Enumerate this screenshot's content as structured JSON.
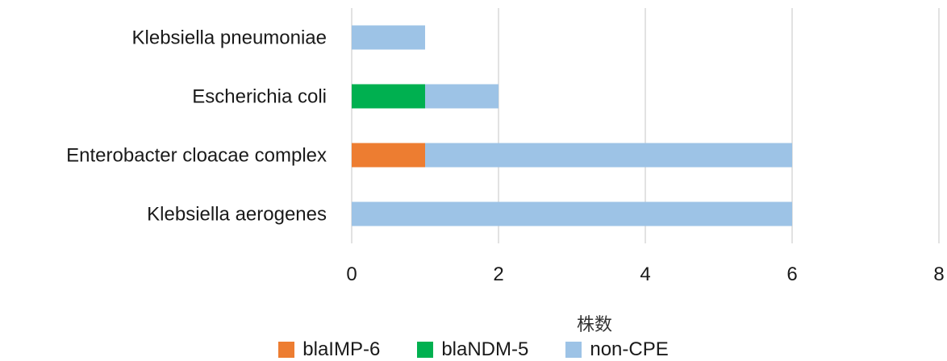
{
  "chart_data": {
    "type": "bar",
    "orientation": "horizontal",
    "stacked": true,
    "categories": [
      "Klebsiella pneumoniae",
      "Escherichia coli",
      "Enterobacter cloacae complex",
      "Klebsiella aerogenes"
    ],
    "series": [
      {
        "name": "blaIMP-6",
        "values": [
          0,
          0,
          1,
          0
        ],
        "color": "#ED7D31"
      },
      {
        "name": "blaNDM-5",
        "values": [
          0,
          1,
          0,
          0
        ],
        "color": "#00B050"
      },
      {
        "name": "non-CPE",
        "values": [
          1,
          1,
          5,
          6
        ],
        "color": "#9DC3E6"
      }
    ],
    "xlabel": "株数",
    "xlim": [
      0,
      8
    ],
    "xticks": [
      "0",
      "2",
      "4",
      "6",
      "8"
    ],
    "grid": true,
    "legend": "bottom"
  }
}
